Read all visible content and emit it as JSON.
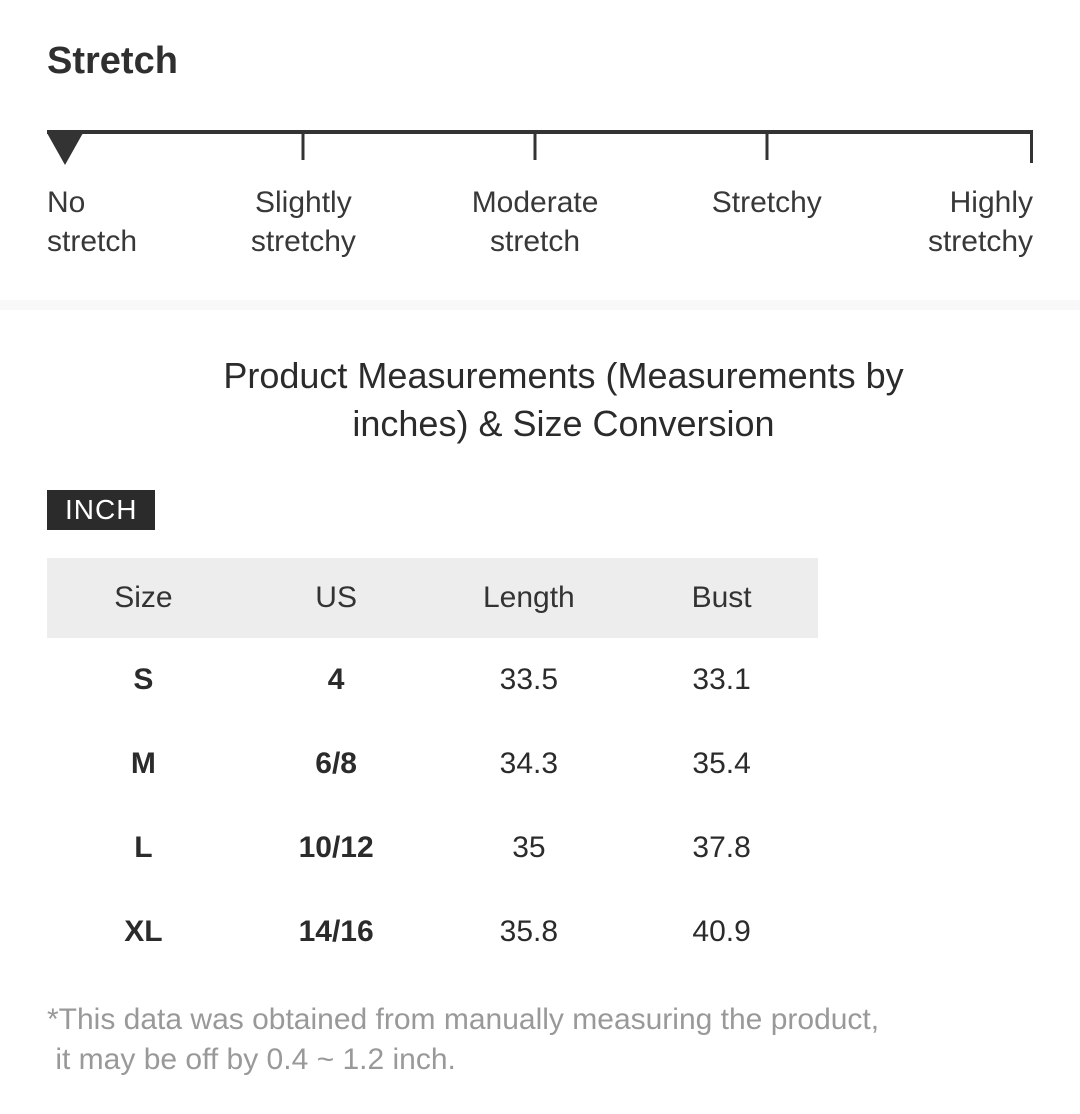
{
  "stretch": {
    "heading": "Stretch",
    "levels": [
      "No stretch",
      "Slightly stretchy",
      "Moderate stretch",
      "Stretchy",
      "Highly stretchy"
    ],
    "selected_level": "No stretch",
    "selected_index": 0,
    "scale_color": "#333333"
  },
  "measurements": {
    "heading": "Product Measurements (Measurements by\ninches) & Size Conversion",
    "unit_badge": "INCH",
    "badge_background": "#2b2b2b",
    "badge_text_color": "#ffffff",
    "table": {
      "header_background": "#ededed",
      "headers": [
        "Size",
        "US",
        "Length",
        "Bust"
      ],
      "rows": [
        {
          "size": "S",
          "us": "4",
          "length": "33.5",
          "bust": "33.1"
        },
        {
          "size": "M",
          "us": "6/8",
          "length": "34.3",
          "bust": "35.4"
        },
        {
          "size": "L",
          "us": "10/12",
          "length": "35",
          "bust": "37.8"
        },
        {
          "size": "XL",
          "us": "14/16",
          "length": "35.8",
          "bust": "40.9"
        }
      ]
    },
    "footnote": "*This data was obtained from manually measuring the product,\n it may be off by 0.4 ~ 1.2 inch."
  }
}
